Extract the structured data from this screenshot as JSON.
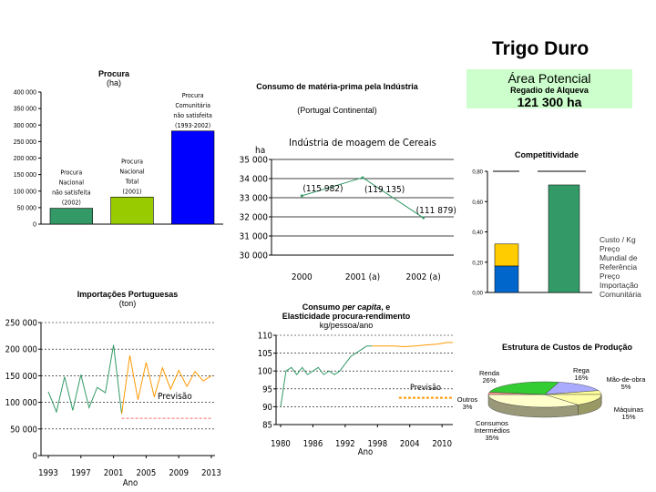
{
  "header": {
    "title": "Trigo Duro",
    "area_label": "Área Potencial",
    "area_sub": "Regadio de Alqueva",
    "area_value": "121 300 ha"
  },
  "procura": {
    "title": "Procura",
    "unit": "(ha)",
    "chart_data": {
      "type": "bar",
      "title": "Procura",
      "ylabel": "(ha)",
      "ylim": [
        0,
        400000
      ],
      "yticks": [
        "0",
        "50 000",
        "100 000",
        "150 000",
        "200 000",
        "250 000",
        "300 000",
        "350 000",
        "400 000"
      ],
      "categories": [
        [
          "Procura",
          "Nacional",
          "não satisfeita",
          "(2002)"
        ],
        [
          "Procura",
          "Nacional",
          "Total",
          "(2001)"
        ],
        [
          "Procura",
          "Comunitária",
          "não satisfeita",
          "(1993-2002)"
        ]
      ],
      "values": [
        48000,
        82000,
        282000
      ],
      "colors": [
        "#339966",
        "#99cc00",
        "#0000ff"
      ]
    }
  },
  "consumo_mp": {
    "title": "Consumo de matéria-prima pela Indústria",
    "subtitle": "(Portugal Continental)",
    "chart_data": {
      "type": "line",
      "title": "Indústria de moagem de Cereais",
      "ylabel": "ha",
      "categories": [
        "2000",
        "2001 (a)",
        "2002 (a)"
      ],
      "values": [
        33100,
        34050,
        31950
      ],
      "data_labels": [
        "(115 982)",
        "(119 135)",
        "(111 879)"
      ],
      "ylim": [
        30000,
        35000
      ],
      "yticks": [
        "30 000",
        "31 000",
        "32 000",
        "33 000",
        "34 000",
        "35 000"
      ],
      "color": "#339966"
    }
  },
  "competitividade": {
    "title": "Competitividade",
    "chart_data": {
      "type": "bar",
      "title": "Competitividade",
      "ylim": [
        0,
        0.8
      ],
      "yticks": [
        "0,00",
        "0,20",
        "0,40",
        "0,60",
        "0,80"
      ],
      "stack": [
        {
          "value": 0.175,
          "color": "#0066cc"
        },
        {
          "value": 0.145,
          "color": "#ffcc00"
        }
      ],
      "bar2_value": 0.71,
      "bar2_color": "#339966",
      "labels": [
        [
          "Custo / Kg"
        ],
        [
          "Preço",
          "Mundial de",
          "Referência"
        ],
        [
          "Preço",
          "Importação",
          "Comunitária"
        ]
      ]
    }
  },
  "importacoes": {
    "title": "Importações Portuguesas",
    "unit": "(ton)",
    "chart_data": {
      "type": "line",
      "title": "Importações Portuguesas",
      "xlabel": "Ano",
      "ylim": [
        0,
        250000
      ],
      "yticks": [
        "0",
        "50 000",
        "100 000",
        "150 000",
        "200 000",
        "250 000"
      ],
      "xticks": [
        "1993",
        "1997",
        "2001",
        "2005",
        "2009",
        "2013"
      ],
      "annotation": "Previsão",
      "series": [
        {
          "color": "#339966",
          "x": [
            1993,
            1994,
            1995,
            1996,
            1997,
            1998,
            1999,
            2000,
            2001,
            2002
          ],
          "y": [
            120000,
            82000,
            148000,
            85000,
            152000,
            90000,
            128000,
            118000,
            208000,
            78000
          ]
        },
        {
          "color": "#ff9900",
          "x": [
            2002,
            2003,
            2004,
            2005,
            2006,
            2007,
            2008,
            2009,
            2010,
            2011,
            2012,
            2013
          ],
          "y": [
            78000,
            188000,
            105000,
            175000,
            110000,
            165000,
            125000,
            160000,
            130000,
            158000,
            140000,
            150000
          ]
        },
        {
          "color": "#ff6666",
          "dashed": true,
          "x": [
            2002,
            2013
          ],
          "y": [
            70000,
            70000
          ]
        }
      ]
    }
  },
  "consumo_pc": {
    "title_a": "Consumo ",
    "title_b": "per capita",
    "title_c": ", e",
    "title2": "Elasticidade procura-rendimento",
    "unit": "kg/pessoa/ano",
    "chart_data": {
      "type": "line",
      "xlabel": "Ano",
      "ylim": [
        85,
        110
      ],
      "yticks": [
        "85",
        "90",
        "95",
        "100",
        "105",
        "110"
      ],
      "xticks": [
        "1980",
        "1986",
        "1992",
        "1998",
        "2004",
        "2010"
      ],
      "annotation": "Previsão",
      "series": [
        {
          "color": "#339966",
          "x": [
            1980,
            1981,
            1982,
            1983,
            1984,
            1985,
            1986,
            1987,
            1988,
            1989,
            1990,
            1991,
            1992,
            1993,
            1994,
            1995,
            1996,
            1997
          ],
          "y": [
            90,
            100,
            101,
            99,
            101,
            99,
            100,
            101,
            99,
            100,
            99,
            100,
            102,
            104,
            105,
            106,
            107,
            107
          ]
        },
        {
          "color": "#ff9900",
          "x": [
            1997,
            1999,
            2001,
            2003,
            2005,
            2007,
            2009,
            2011,
            2012
          ],
          "y": [
            107,
            107,
            107,
            106.8,
            107,
            107.3,
            107.5,
            108,
            108
          ]
        },
        {
          "color": "#ff9900",
          "dashed": true,
          "x": [
            2002,
            2012
          ],
          "y": [
            92.5,
            92.5
          ]
        }
      ]
    }
  },
  "estrutura": {
    "title": "Estrutura de Custos de Produção",
    "chart_data": {
      "type": "pie",
      "title": "Estrutura de Custos de Produção",
      "slices": [
        {
          "label": "Rega",
          "pct": "16%",
          "value": 16,
          "color": "#aaaaff"
        },
        {
          "label": "Mão-de-obra",
          "pct": "5%",
          "value": 5,
          "color": "#ffff99"
        },
        {
          "label": "Máquinas",
          "pct": "15%",
          "value": 15,
          "color": "#ffffaa"
        },
        {
          "label": "Consumos Intermédios",
          "pct": "35%",
          "value": 35,
          "color": "#ffffcc"
        },
        {
          "label": "Outros",
          "pct": "3%",
          "value": 3,
          "color": "#ff9999"
        },
        {
          "label": "Renda",
          "pct": "26%",
          "value": 26,
          "color": "#33cc33"
        }
      ]
    }
  }
}
